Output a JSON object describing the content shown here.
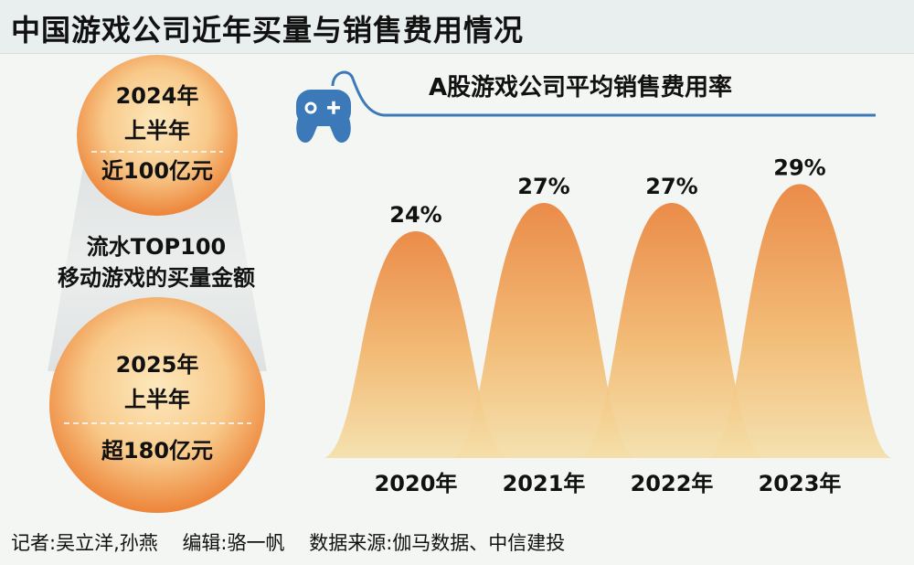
{
  "title": "中国游戏公司近年买量与销售费用情况",
  "left": {
    "top_circle": {
      "line1": "2024年",
      "line2": "上半年",
      "value": "近100亿元"
    },
    "middle_label": {
      "line1": "流水TOP100",
      "line2": "移动游戏的买量金额"
    },
    "bottom_circle": {
      "line1": "2025年",
      "line2": "上半年",
      "value": "超180亿元"
    }
  },
  "icon": "game-controller-icon",
  "colors": {
    "bell_top": "#ea8037",
    "bell_bottom": "#f5dfa8",
    "circle_outer": "#ec7f33",
    "circle_inner": "#fde7b8",
    "accent_blue": "#3b79b8"
  },
  "chart_data": {
    "type": "bar",
    "title": "A股游戏公司平均销售费用率",
    "categories": [
      "2020年",
      "2021年",
      "2022年",
      "2023年"
    ],
    "values": [
      24,
      27,
      27,
      29
    ],
    "value_labels": [
      "24%",
      "27%",
      "27%",
      "29%"
    ],
    "unit": "%",
    "ylim": [
      0,
      30
    ]
  },
  "footer": {
    "reporter": "记者:吴立洋,孙燕",
    "editor": "编辑:骆一帆",
    "source": "数据来源:伽马数据、中信建投"
  }
}
